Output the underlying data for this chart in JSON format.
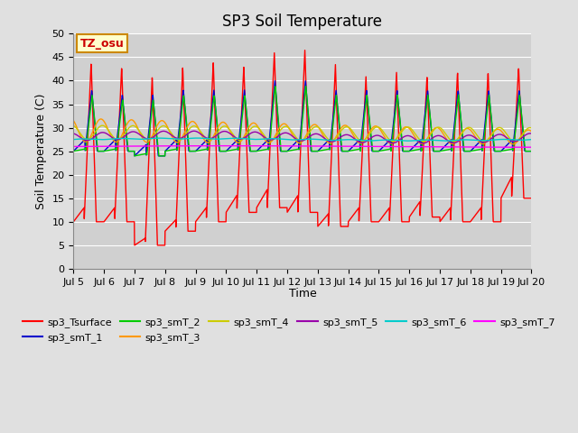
{
  "title": "SP3 Soil Temperature",
  "xlabel": "Time",
  "ylabel": "Soil Temperature (C)",
  "ylim": [
    0,
    50
  ],
  "yticks": [
    0,
    5,
    10,
    15,
    20,
    25,
    30,
    35,
    40,
    45,
    50
  ],
  "xtick_labels": [
    "Jul 5",
    "Jul 6",
    "Jul 7",
    "Jul 8",
    "Jul 9",
    "Jul 10",
    "Jul 11",
    "Jul 12",
    "Jul 13",
    "Jul 14",
    "Jul 15",
    "Jul 16",
    "Jul 17",
    "Jul 18",
    "Jul 19",
    "Jul 20"
  ],
  "tz_label": "TZ_osu",
  "series_colors": {
    "sp3_Tsurface": "#ff0000",
    "sp3_smT_1": "#0000cc",
    "sp3_smT_2": "#00cc00",
    "sp3_smT_3": "#ff9900",
    "sp3_smT_4": "#cccc00",
    "sp3_smT_5": "#9900aa",
    "sp3_smT_6": "#00cccc",
    "sp3_smT_7": "#ff00ff"
  },
  "fig_bg": "#e0e0e0",
  "plot_bg": "#d0d0d0",
  "grid_color": "#ffffff",
  "title_fontsize": 12,
  "tick_fontsize": 8,
  "label_fontsize": 9,
  "legend_fontsize": 8
}
